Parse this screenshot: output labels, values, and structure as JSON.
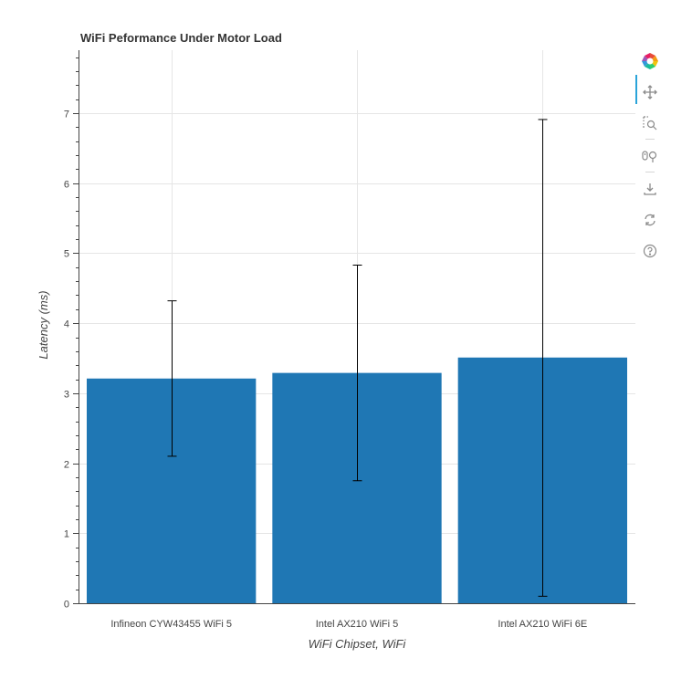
{
  "chart_data": {
    "type": "bar",
    "title": "WiFi Peformance Under Motor Load",
    "xlabel": "WiFi Chipset, WiFi",
    "ylabel": "Latency (ms)",
    "categories": [
      "Infineon CYW43455 WiFi 5",
      "Intel AX210 WiFi 5",
      "Intel AX210 WiFi 6E"
    ],
    "values": [
      3.21,
      3.29,
      3.51
    ],
    "error_low": [
      2.1,
      1.75,
      0.1
    ],
    "error_high": [
      4.32,
      4.83,
      6.91
    ],
    "ylim": [
      0,
      7.9
    ],
    "yticks": [
      0,
      1,
      2,
      3,
      4,
      5,
      6,
      7
    ],
    "grid": true,
    "bar_color": "#1f77b4"
  },
  "toolbar": {
    "items": [
      "bokeh-logo-icon",
      "pan-icon",
      "box-zoom-icon",
      "wheel-zoom-icon",
      "save-icon",
      "reset-icon",
      "help-icon"
    ]
  }
}
